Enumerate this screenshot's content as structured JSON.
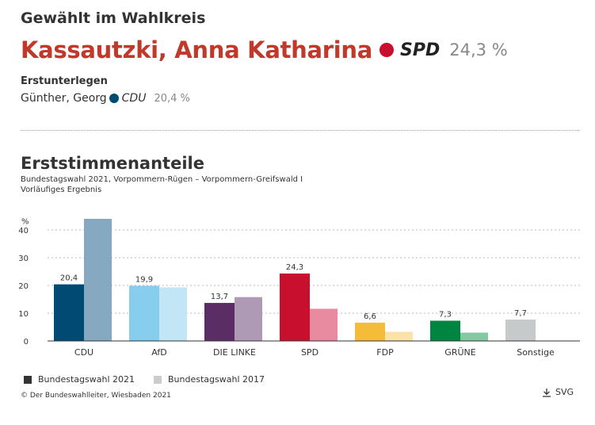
{
  "header": {
    "title": "Gewählt im Wahlkreis",
    "winner": {
      "name": "Kassautzki, Anna Katharina",
      "party": "SPD",
      "percent": "24,3 %",
      "dot_color": "#c8102e"
    },
    "runner_up_label": "Erstunterlegen",
    "runner_up": {
      "name": "Günther, Georg",
      "party": "CDU",
      "percent": "20,4 %",
      "dot_color": "#004a74"
    }
  },
  "footer": {
    "copyright": "© Der Bundeswahlleiter, Wiesbaden 2021",
    "download_label": "SVG"
  },
  "chart_data": {
    "type": "bar",
    "title": "Erststimmenanteile",
    "subtitle": "Bundestagswahl 2021, Vorpommern-Rügen – Vorpommern-Greifswald I",
    "note": "Vorläufiges Ergebnis",
    "ylabel": "%",
    "ylim": [
      0,
      45
    ],
    "yticks": [
      0,
      10,
      20,
      30,
      40
    ],
    "grid": true,
    "categories": [
      "CDU",
      "AfD",
      "DIE LINKE",
      "SPD",
      "FDP",
      "GRÜNE",
      "Sonstige"
    ],
    "series": [
      {
        "name": "Bundestagswahl 2021",
        "values": [
          20.4,
          19.9,
          13.7,
          24.3,
          6.6,
          7.3,
          7.7
        ],
        "labels": [
          "20,4",
          "19,9",
          "13,7",
          "24,3",
          "6,6",
          "7,3",
          "7,7"
        ],
        "colors": [
          "#004a74",
          "#87cdee",
          "#5a2d64",
          "#c8102e",
          "#f5bc3a",
          "#008540",
          "#c6cacb"
        ]
      },
      {
        "name": "Bundestagswahl 2017",
        "values": [
          44.0,
          19.3,
          15.8,
          11.6,
          3.3,
          3.0,
          null
        ],
        "colors": [
          "#86a8c0",
          "#c2e6f6",
          "#ae9ab4",
          "#e88aa0",
          "#fae2a8",
          "#84c8a4",
          "#dde0e1"
        ]
      }
    ],
    "legend": {
      "placement": "bottom-left",
      "swatch_2021": "#333333",
      "swatch_2017": "#cccccc"
    }
  }
}
